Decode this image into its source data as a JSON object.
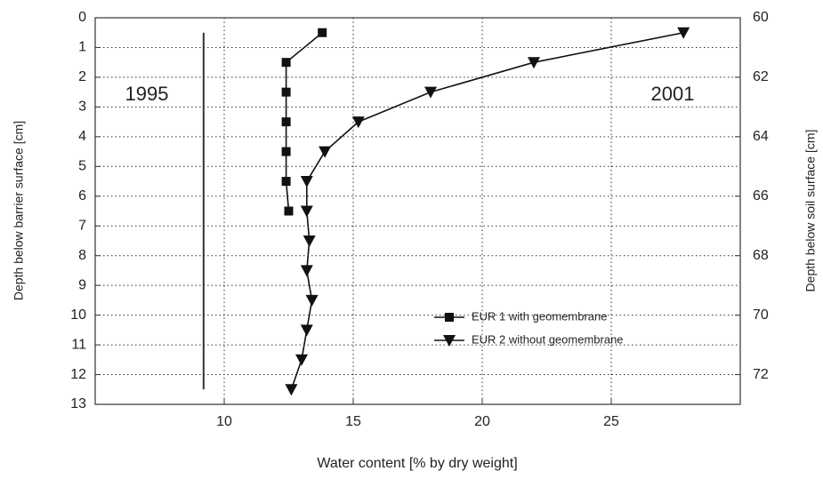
{
  "chart_data": {
    "type": "scatter",
    "xlabel": "Water content [% by dry weight]",
    "ylabel": "Depth below barrier surface [cm]",
    "y2label": "Depth below soil surface [cm]",
    "xlim": [
      5,
      30
    ],
    "xticks": [
      10,
      15,
      20,
      25
    ],
    "ylim": [
      0,
      13
    ],
    "yticks": [
      0,
      1,
      2,
      3,
      4,
      5,
      6,
      7,
      8,
      9,
      10,
      11,
      12,
      13
    ],
    "y2lim": [
      60,
      73
    ],
    "y2ticks": [
      60,
      62,
      64,
      66,
      68,
      70,
      72
    ],
    "grid": true,
    "legend": "lower right",
    "annotations": [
      {
        "text": "1995",
        "line_x": 9.2,
        "line_y": [
          0.5,
          12.5
        ]
      },
      {
        "text": "2001"
      }
    ],
    "series": [
      {
        "name": "EUR 1 with geomembrane",
        "color": "#111111",
        "marker": "square",
        "x": [
          13.8,
          12.4,
          12.4,
          12.4,
          12.4,
          12.4,
          12.5
        ],
        "y": [
          0.5,
          1.5,
          2.5,
          3.5,
          4.5,
          5.5,
          6.5
        ]
      },
      {
        "name": "EUR 2 without geomembrane",
        "color": "#111111",
        "marker": "triangle-down",
        "x": [
          27.8,
          22.0,
          18.0,
          15.2,
          13.9,
          13.2,
          13.2,
          13.3,
          13.2,
          13.4,
          13.2,
          13.0,
          12.6
        ],
        "y": [
          0.5,
          1.5,
          2.5,
          3.5,
          4.5,
          5.5,
          6.5,
          7.5,
          8.5,
          9.5,
          10.5,
          11.5,
          12.5
        ]
      }
    ]
  }
}
